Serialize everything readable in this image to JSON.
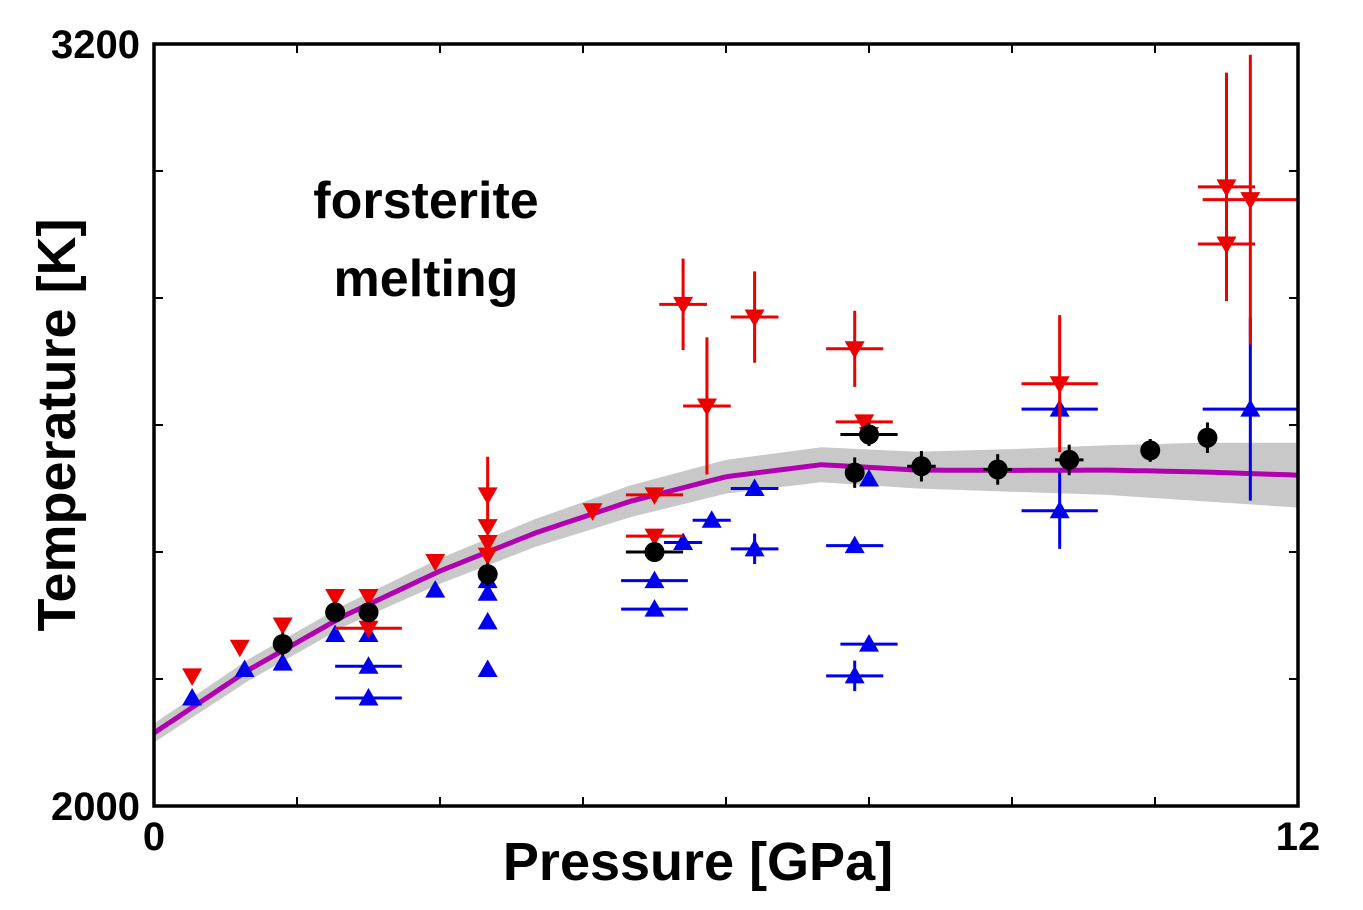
{
  "chart_data": {
    "type": "scatter",
    "title": "",
    "xlabel": "Pressure  [GPa]",
    "ylabel": "Temperature  [K]",
    "xlim": [
      0,
      12
    ],
    "ylim": [
      2000,
      3200
    ],
    "x_tick_labels": [
      {
        "value": 0,
        "label": "0"
      },
      {
        "value": 12,
        "label": "12"
      }
    ],
    "y_tick_labels": [
      {
        "value": 2000,
        "label": "2000"
      },
      {
        "value": 3200,
        "label": "3200"
      }
    ],
    "x_ticks": [
      0,
      1.5,
      3,
      4.5,
      6,
      7.5,
      9,
      10.5,
      12
    ],
    "y_ticks": [
      2000,
      2200,
      2400,
      2600,
      2800,
      3000,
      3200
    ],
    "grid": false,
    "annotation": [
      "forsterite",
      "melting"
    ],
    "colors": {
      "upper_bound": "#ee0000",
      "lower_bound": "#0000ee",
      "measured": "#000000",
      "fit": "#b000b0",
      "band": "#c8c8c8"
    },
    "fit_curve": {
      "x": [
        0,
        0.5,
        1,
        1.5,
        2,
        2.5,
        3,
        3.5,
        4,
        4.5,
        5,
        5.5,
        6,
        6.5,
        7,
        7.5,
        8,
        8.5,
        9,
        9.5,
        10,
        10.5,
        11,
        11.5,
        12
      ],
      "y": [
        2115,
        2168,
        2215,
        2260,
        2300,
        2338,
        2370,
        2400,
        2430,
        2458,
        2480,
        2500,
        2518,
        2530,
        2540,
        2505,
        2516,
        2522,
        2525,
        2527,
        2528,
        2528,
        2527,
        2525,
        2522
      ]
    },
    "band": {
      "x": [
        0,
        1,
        2,
        3,
        4,
        5,
        6,
        7,
        8,
        9,
        10,
        11,
        12
      ],
      "upper": [
        2130,
        2232,
        2317,
        2390,
        2452,
        2505,
        2545,
        2565,
        2558,
        2562,
        2568,
        2572,
        2572
      ],
      "lower": [
        2100,
        2198,
        2283,
        2350,
        2408,
        2455,
        2492,
        2510,
        2500,
        2495,
        2490,
        2480,
        2470
      ]
    },
    "series": [
      {
        "marker": "triangle-down",
        "points": [
          {
            "x": 0.4,
            "y": 2205,
            "xerr": 0,
            "yerr": 0
          },
          {
            "x": 0.9,
            "y": 2250,
            "xerr": 0,
            "yerr": 0
          },
          {
            "x": 1.35,
            "y": 2285,
            "xerr": 0,
            "yerr": 0
          },
          {
            "x": 1.9,
            "y": 2330,
            "xerr": 0,
            "yerr": 0
          },
          {
            "x": 2.25,
            "y": 2330,
            "xerr": 0,
            "yerr": 0
          },
          {
            "x": 2.25,
            "y": 2280,
            "xerr": 0.35,
            "yerr": 0
          },
          {
            "x": 2.95,
            "y": 2385,
            "xerr": 0,
            "yerr": 0
          },
          {
            "x": 3.5,
            "y": 2490,
            "xerr": 0,
            "yerr": 0.05
          },
          {
            "x": 3.5,
            "y": 2440,
            "xerr": 0,
            "yerr": 0
          },
          {
            "x": 3.5,
            "y": 2415,
            "xerr": 0,
            "yerr": 0
          },
          {
            "x": 3.5,
            "y": 2395,
            "xerr": 0,
            "yerr": 0
          },
          {
            "x": 4.6,
            "y": 2465,
            "xerr": 0,
            "yerr": 0
          },
          {
            "x": 5.25,
            "y": 2490,
            "xerr": 0.3,
            "yerr": 0
          },
          {
            "x": 5.25,
            "y": 2425,
            "xerr": 0.3,
            "yerr": 0
          },
          {
            "x": 5.55,
            "y": 2790,
            "xerr": 0.25,
            "yerr": 0.06
          },
          {
            "x": 5.8,
            "y": 2630,
            "xerr": 0.25,
            "yerr": 0.09
          },
          {
            "x": 6.3,
            "y": 2770,
            "xerr": 0.25,
            "yerr": 0.06
          },
          {
            "x": 7.35,
            "y": 2720,
            "xerr": 0.3,
            "yerr": 0.05
          },
          {
            "x": 7.45,
            "y": 2605,
            "xerr": 0.3,
            "yerr": 0
          },
          {
            "x": 7.5,
            "y": 2585,
            "xerr": 0,
            "yerr": 0
          },
          {
            "x": 9.5,
            "y": 2665,
            "xerr": 0.4,
            "yerr": 0.09
          },
          {
            "x": 11.25,
            "y": 2975,
            "xerr": 0.3,
            "yerr": 0.15
          },
          {
            "x": 11.5,
            "y": 2955,
            "xerr": 0.5,
            "yerr": 0.19
          },
          {
            "x": 11.25,
            "y": 2885,
            "xerr": 0.3,
            "yerr": 0
          }
        ]
      },
      {
        "marker": "triangle-up",
        "points": [
          {
            "x": 0.4,
            "y": 2170,
            "xerr": 0,
            "yerr": 0
          },
          {
            "x": 0.95,
            "y": 2215,
            "xerr": 0,
            "yerr": 0
          },
          {
            "x": 1.35,
            "y": 2225,
            "xerr": 0,
            "yerr": 0
          },
          {
            "x": 1.9,
            "y": 2270,
            "xerr": 0,
            "yerr": 0
          },
          {
            "x": 2.25,
            "y": 2270,
            "xerr": 0,
            "yerr": 0
          },
          {
            "x": 2.25,
            "y": 2220,
            "xerr": 0.35,
            "yerr": 0
          },
          {
            "x": 2.25,
            "y": 2170,
            "xerr": 0.35,
            "yerr": 0
          },
          {
            "x": 2.95,
            "y": 2340,
            "xerr": 0,
            "yerr": 0
          },
          {
            "x": 3.5,
            "y": 2355,
            "xerr": 0,
            "yerr": 0
          },
          {
            "x": 3.5,
            "y": 2335,
            "xerr": 0,
            "yerr": 0
          },
          {
            "x": 3.5,
            "y": 2290,
            "xerr": 0,
            "yerr": 0
          },
          {
            "x": 3.5,
            "y": 2215,
            "xerr": 0,
            "yerr": 0
          },
          {
            "x": 5.25,
            "y": 2355,
            "xerr": 0.35,
            "yerr": 0
          },
          {
            "x": 5.25,
            "y": 2310,
            "xerr": 0.35,
            "yerr": 0
          },
          {
            "x": 5.55,
            "y": 2415,
            "xerr": 0.2,
            "yerr": 0
          },
          {
            "x": 5.85,
            "y": 2450,
            "xerr": 0.2,
            "yerr": 0
          },
          {
            "x": 6.3,
            "y": 2500,
            "xerr": 0.25,
            "yerr": 0
          },
          {
            "x": 6.3,
            "y": 2405,
            "xerr": 0.25,
            "yerr": 0.02
          },
          {
            "x": 7.35,
            "y": 2410,
            "xerr": 0.3,
            "yerr": 0
          },
          {
            "x": 7.5,
            "y": 2515,
            "xerr": 0,
            "yerr": 0
          },
          {
            "x": 7.5,
            "y": 2255,
            "xerr": 0.3,
            "yerr": 0
          },
          {
            "x": 7.35,
            "y": 2205,
            "xerr": 0.3,
            "yerr": 0.02
          },
          {
            "x": 9.5,
            "y": 2625,
            "xerr": 0.4,
            "yerr": 0
          },
          {
            "x": 9.5,
            "y": 2465,
            "xerr": 0.4,
            "yerr": 0.05
          },
          {
            "x": 11.5,
            "y": 2625,
            "xerr": 0.5,
            "yerr": 0.12
          }
        ]
      },
      {
        "marker": "circle",
        "points": [
          {
            "x": 1.35,
            "y": 2255,
            "xerr": 0,
            "yerr": 0.015
          },
          {
            "x": 1.9,
            "y": 2305,
            "xerr": 0,
            "yerr": 0
          },
          {
            "x": 2.25,
            "y": 2305,
            "xerr": 0,
            "yerr": 0
          },
          {
            "x": 3.5,
            "y": 2365,
            "xerr": 0.1,
            "yerr": 0.015
          },
          {
            "x": 5.25,
            "y": 2400,
            "xerr": 0.3,
            "yerr": 0
          },
          {
            "x": 7.35,
            "y": 2525,
            "xerr": 0.1,
            "yerr": 0.02
          },
          {
            "x": 7.5,
            "y": 2585,
            "xerr": 0.3,
            "yerr": 0.015
          },
          {
            "x": 8.05,
            "y": 2535,
            "xerr": 0.15,
            "yerr": 0.02
          },
          {
            "x": 8.85,
            "y": 2530,
            "xerr": 0.15,
            "yerr": 0.02
          },
          {
            "x": 9.6,
            "y": 2545,
            "xerr": 0.15,
            "yerr": 0.02
          },
          {
            "x": 10.45,
            "y": 2560,
            "xerr": 0.1,
            "yerr": 0.015
          },
          {
            "x": 11.05,
            "y": 2580,
            "xerr": 0.1,
            "yerr": 0.02
          }
        ]
      }
    ]
  }
}
